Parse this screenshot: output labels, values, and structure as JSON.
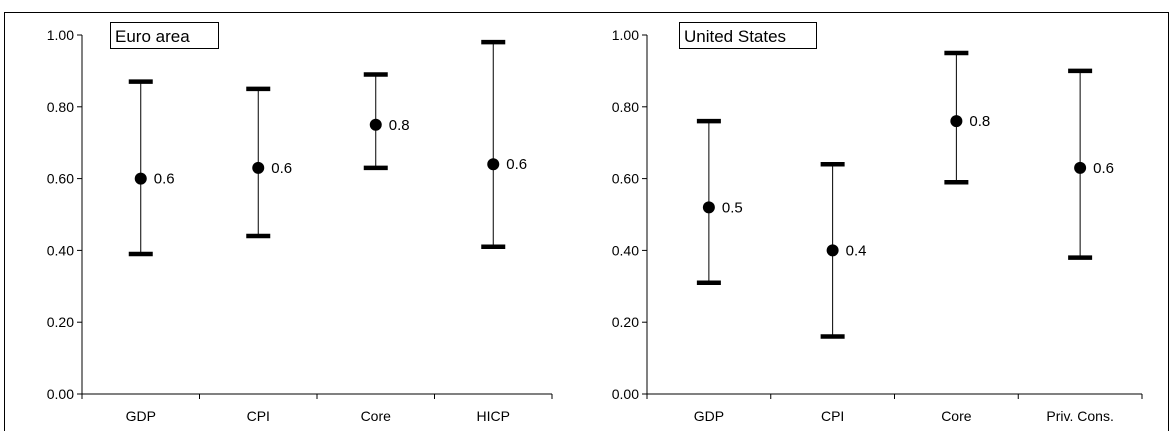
{
  "chart_data": [
    {
      "type": "errorbar",
      "title": "Euro area",
      "ylim": [
        0,
        1
      ],
      "yticks": [
        "0.00",
        "0.20",
        "0.40",
        "0.60",
        "0.80",
        "1.00"
      ],
      "categories": [
        "GDP",
        "CPI",
        "Core",
        "HICP"
      ],
      "points": [
        {
          "category": "GDP",
          "value": 0.6,
          "low": 0.39,
          "high": 0.87,
          "label": "0.6"
        },
        {
          "category": "CPI",
          "value": 0.63,
          "low": 0.44,
          "high": 0.85,
          "label": "0.6"
        },
        {
          "category": "Core",
          "value": 0.75,
          "low": 0.63,
          "high": 0.89,
          "label": "0.8"
        },
        {
          "category": "HICP",
          "value": 0.64,
          "low": 0.41,
          "high": 0.98,
          "label": "0.6"
        }
      ]
    },
    {
      "type": "errorbar",
      "title": "United States",
      "ylim": [
        0,
        1
      ],
      "yticks": [
        "0.00",
        "0.20",
        "0.40",
        "0.60",
        "0.80",
        "1.00"
      ],
      "categories": [
        "GDP",
        "CPI",
        "Core",
        "Priv. Cons."
      ],
      "points": [
        {
          "category": "GDP",
          "value": 0.52,
          "low": 0.31,
          "high": 0.76,
          "label": "0.5"
        },
        {
          "category": "CPI",
          "value": 0.4,
          "low": 0.16,
          "high": 0.64,
          "label": "0.4"
        },
        {
          "category": "Core",
          "value": 0.76,
          "low": 0.59,
          "high": 0.95,
          "label": "0.8"
        },
        {
          "category": "Priv. Cons.",
          "value": 0.63,
          "low": 0.38,
          "high": 0.9,
          "label": "0.6"
        }
      ]
    }
  ],
  "colors": {
    "marker": "#000000",
    "axis": "#000000",
    "frame": "#000000"
  }
}
